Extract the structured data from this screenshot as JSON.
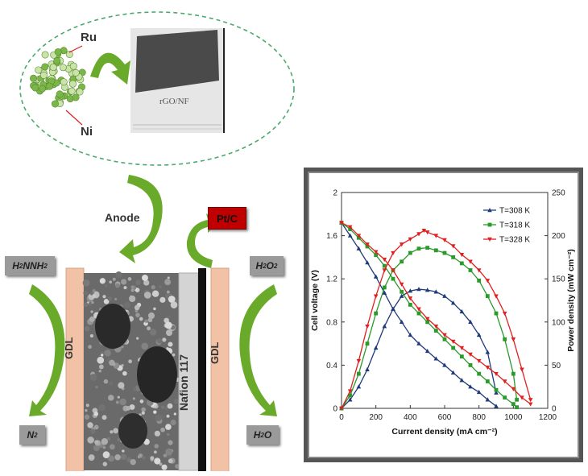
{
  "catalyst": {
    "ru_label": "Ru",
    "ni_label": "Ni",
    "rgo_label": "rGO/NF"
  },
  "cell": {
    "anode_label": "Anode",
    "cathode_catalyst": "Pt/C",
    "gdl_left": "GDL",
    "gdl_right": "GDL",
    "membrane": "Nafion 117",
    "fuel_in_main": "H",
    "fuel_in_sub1": "2",
    "fuel_in_mid": "NNH",
    "fuel_in_sub2": "2",
    "fuel_out_main": "N",
    "fuel_out_sub": "2",
    "oxidant_in_main": "H",
    "oxidant_in_sub1": "2",
    "oxidant_in_mid": "O",
    "oxidant_in_sub2": "2",
    "oxidant_out_main": "H",
    "oxidant_out_sub": "2",
    "oxidant_out_end": "O",
    "colors": {
      "gdl": "#f2c2a6",
      "membrane": "#d4d4d4",
      "pt_box": "#c00000",
      "arrow": "#6aaa2a",
      "label_box": "#999999"
    }
  },
  "chart_data": {
    "type": "line",
    "xlabel": "Current density (mA cm⁻²)",
    "ylabel": "Cell voltage (V)",
    "y2label": "Power density (mW cm⁻²)",
    "xlim": [
      0,
      1200
    ],
    "ylim": [
      0,
      2
    ],
    "y2lim": [
      0,
      250
    ],
    "x_ticks": [
      "0",
      "200",
      "400",
      "600",
      "800",
      "1000",
      "1200"
    ],
    "y_ticks": [
      "0",
      "0.4",
      "0.8",
      "1.2",
      "1.6",
      "2"
    ],
    "y2_ticks": [
      "0",
      "50",
      "100",
      "150",
      "200",
      "250"
    ],
    "legend_position": "top-right",
    "series": [
      {
        "name": "T=308 K",
        "color": "#1f3a7a",
        "marker": "triangle",
        "voltage": [
          [
            0,
            1.72
          ],
          [
            50,
            1.6
          ],
          [
            100,
            1.48
          ],
          [
            150,
            1.35
          ],
          [
            200,
            1.22
          ],
          [
            250,
            1.07
          ],
          [
            300,
            0.92
          ],
          [
            350,
            0.8
          ],
          [
            400,
            0.68
          ],
          [
            450,
            0.6
          ],
          [
            500,
            0.53
          ],
          [
            550,
            0.46
          ],
          [
            600,
            0.4
          ],
          [
            650,
            0.33
          ],
          [
            700,
            0.26
          ],
          [
            750,
            0.2
          ],
          [
            800,
            0.15
          ],
          [
            850,
            0.08
          ],
          [
            900,
            0.02
          ]
        ],
        "power": [
          [
            0,
            0
          ],
          [
            50,
            10
          ],
          [
            100,
            25
          ],
          [
            150,
            45
          ],
          [
            200,
            70
          ],
          [
            250,
            95
          ],
          [
            300,
            115
          ],
          [
            350,
            130
          ],
          [
            400,
            136
          ],
          [
            450,
            138
          ],
          [
            500,
            137
          ],
          [
            550,
            135
          ],
          [
            600,
            130
          ],
          [
            650,
            122
          ],
          [
            700,
            112
          ],
          [
            750,
            100
          ],
          [
            800,
            85
          ],
          [
            850,
            65
          ],
          [
            900,
            18
          ]
        ]
      },
      {
        "name": "T=318 K",
        "color": "#2a9a2a",
        "marker": "square",
        "voltage": [
          [
            0,
            1.72
          ],
          [
            50,
            1.66
          ],
          [
            100,
            1.58
          ],
          [
            150,
            1.5
          ],
          [
            200,
            1.42
          ],
          [
            250,
            1.32
          ],
          [
            300,
            1.2
          ],
          [
            350,
            1.08
          ],
          [
            400,
            0.96
          ],
          [
            450,
            0.88
          ],
          [
            500,
            0.8
          ],
          [
            550,
            0.72
          ],
          [
            600,
            0.64
          ],
          [
            650,
            0.56
          ],
          [
            700,
            0.48
          ],
          [
            750,
            0.4
          ],
          [
            800,
            0.32
          ],
          [
            850,
            0.25
          ],
          [
            900,
            0.17
          ],
          [
            950,
            0.1
          ],
          [
            1000,
            0.04
          ],
          [
            1020,
            0.01
          ]
        ],
        "power": [
          [
            0,
            0
          ],
          [
            50,
            15
          ],
          [
            100,
            40
          ],
          [
            150,
            75
          ],
          [
            200,
            110
          ],
          [
            250,
            140
          ],
          [
            300,
            160
          ],
          [
            350,
            170
          ],
          [
            400,
            180
          ],
          [
            450,
            185
          ],
          [
            500,
            186
          ],
          [
            550,
            183
          ],
          [
            600,
            180
          ],
          [
            650,
            175
          ],
          [
            700,
            168
          ],
          [
            750,
            160
          ],
          [
            800,
            148
          ],
          [
            850,
            130
          ],
          [
            900,
            110
          ],
          [
            950,
            80
          ],
          [
            1000,
            40
          ],
          [
            1020,
            10
          ]
        ]
      },
      {
        "name": "T=328 K",
        "color": "#e02020",
        "marker": "triangle-down",
        "voltage": [
          [
            0,
            1.72
          ],
          [
            50,
            1.68
          ],
          [
            100,
            1.6
          ],
          [
            150,
            1.52
          ],
          [
            200,
            1.45
          ],
          [
            250,
            1.38
          ],
          [
            300,
            1.28
          ],
          [
            350,
            1.15
          ],
          [
            400,
            1.02
          ],
          [
            450,
            0.92
          ],
          [
            500,
            0.83
          ],
          [
            550,
            0.76
          ],
          [
            600,
            0.68
          ],
          [
            650,
            0.62
          ],
          [
            700,
            0.56
          ],
          [
            750,
            0.5
          ],
          [
            800,
            0.44
          ],
          [
            850,
            0.38
          ],
          [
            900,
            0.32
          ],
          [
            950,
            0.25
          ],
          [
            1000,
            0.18
          ],
          [
            1050,
            0.1
          ],
          [
            1100,
            0.04
          ]
        ],
        "power": [
          [
            0,
            0
          ],
          [
            50,
            20
          ],
          [
            100,
            55
          ],
          [
            150,
            95
          ],
          [
            200,
            130
          ],
          [
            250,
            160
          ],
          [
            300,
            180
          ],
          [
            350,
            190
          ],
          [
            400,
            196
          ],
          [
            450,
            202
          ],
          [
            480,
            206
          ],
          [
            500,
            204
          ],
          [
            550,
            200
          ],
          [
            600,
            195
          ],
          [
            650,
            188
          ],
          [
            700,
            178
          ],
          [
            750,
            170
          ],
          [
            800,
            160
          ],
          [
            850,
            148
          ],
          [
            900,
            130
          ],
          [
            950,
            110
          ],
          [
            1000,
            80
          ],
          [
            1050,
            45
          ],
          [
            1100,
            10
          ]
        ]
      }
    ]
  }
}
